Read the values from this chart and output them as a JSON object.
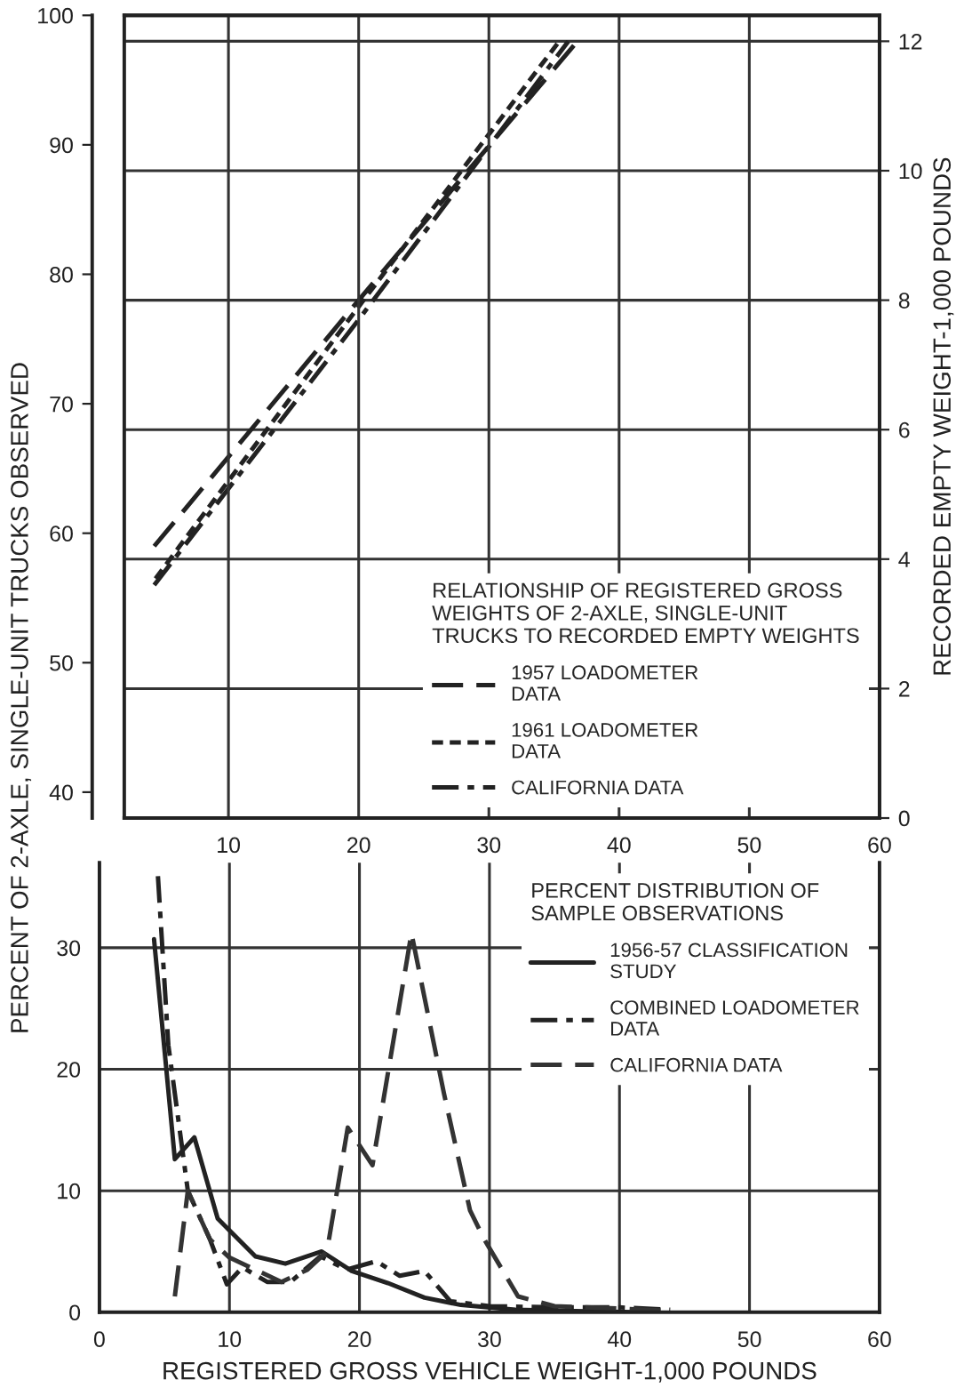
{
  "chart_data": [
    {
      "type": "line",
      "xlim": [
        2,
        60
      ],
      "xticks": [
        10,
        20,
        30,
        40,
        50,
        60
      ],
      "ylim": [
        38,
        100
      ],
      "yticks": [
        40,
        50,
        60,
        70,
        80,
        90,
        100
      ],
      "y2lim": [
        0,
        12.4
      ],
      "y2ticks": [
        0,
        2,
        4,
        6,
        8,
        10,
        12
      ],
      "y2label": "RECORDED EMPTY WEIGHT-1,000 POUNDS",
      "legend_title": "RELATIONSHIP OF REGISTERED GROSS\nWEIGHTS OF 2-AXLE, SINGLE-UNIT\nTRUCKS TO RECORDED EMPTY WEIGHTS",
      "legend": "bottom right",
      "grid": true,
      "series": [
        {
          "name": "1957 LOADOMETER\nDATA",
          "color": "#222222",
          "axis": "y2",
          "line_style": "dashed",
          "x": [
            4.3,
            20,
            36.8
          ],
          "values": [
            4.2,
            8.0,
            12
          ]
        },
        {
          "name": "1961 LOADOMETER\nDATA",
          "color": "#222222",
          "axis": "y2",
          "line_style": "dotted",
          "x": [
            4.4,
            20,
            35.4
          ],
          "values": [
            3.7,
            7.9,
            12
          ]
        },
        {
          "name": "CALIFORNIA DATA",
          "color": "#222222",
          "axis": "y2",
          "line_style": "dashdot",
          "x": [
            4.3,
            20,
            36.1
          ],
          "values": [
            3.6,
            7.7,
            12
          ]
        }
      ]
    },
    {
      "type": "line",
      "xlim": [
        0,
        60
      ],
      "xticks": [
        0,
        10,
        20,
        30,
        40,
        50,
        60
      ],
      "ylim": [
        0,
        37
      ],
      "yticks": [
        0,
        10,
        20,
        30
      ],
      "xlabel": "REGISTERED GROSS VEHICLE WEIGHT-1,000 POUNDS",
      "ylabel": "PERCENT OF 2-AXLE, SINGLE-UNIT TRUCKS OBSERVED",
      "legend_title": "PERCENT DISTRIBUTION OF\nSAMPLE OBSERVATIONS",
      "legend": "top right",
      "grid": true,
      "series": [
        {
          "name": "1956-57 CLASSIFICATION\nSTUDY",
          "color": "#222222",
          "line_style": "solid",
          "x": [
            4.2,
            5.8,
            7.3,
            9.1,
            12.0,
            14.3,
            17.1,
            19.4,
            22.2,
            25.0,
            27.8,
            32.0,
            36.6,
            41.3
          ],
          "values": [
            30.7,
            12.6,
            14.4,
            7.7,
            4.6,
            4.0,
            5.0,
            3.4,
            2.4,
            1.2,
            0.6,
            0.2,
            0.1,
            0
          ]
        },
        {
          "name": "COMBINED LOADOMETER\nDATA",
          "color": "#222222",
          "line_style": "dashdot",
          "x": [
            4.5,
            5.3,
            6.8,
            8.5,
            9.8,
            11.0,
            12.9,
            14.7,
            17.0,
            19.0,
            21.3,
            23.1,
            25.0,
            27.0,
            30.0,
            35.0,
            40.0,
            43.9
          ],
          "values": [
            35.9,
            22,
            10,
            6,
            2.3,
            3.7,
            2.5,
            2.5,
            4.6,
            3.5,
            4.2,
            3.0,
            3.4,
            0.9,
            0.5,
            0.4,
            0.4,
            0.2
          ]
        },
        {
          "name": "CALIFORNIA DATA",
          "color": "#333333",
          "line_style": "dashed",
          "x": [
            5.8,
            6.8,
            8.5,
            10.0,
            12.0,
            14.0,
            16.0,
            17.5,
            19.1,
            21.0,
            24.0,
            26.5,
            28.5,
            29.6,
            32.2,
            35.0,
            40.0,
            44.0
          ],
          "values": [
            1.3,
            10,
            6,
            4.5,
            3.5,
            2.5,
            3.5,
            5.0,
            15.2,
            12.1,
            31.2,
            18,
            8.4,
            6.0,
            1.3,
            0.5,
            0.3,
            0.1
          ]
        }
      ]
    }
  ]
}
